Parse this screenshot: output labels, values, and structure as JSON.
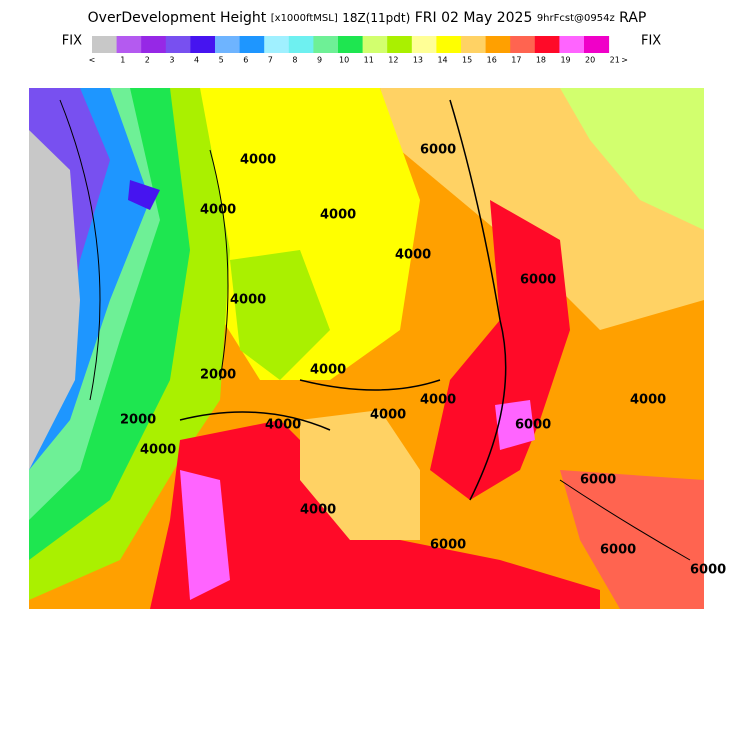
{
  "header": {
    "title": "OverDevelopment Height",
    "units": "[x1000ftMSL]",
    "time": "18Z(11pdt)",
    "date": "FRI 02 May 2025",
    "forecast": "9hrFcst@0954z",
    "model": "RAP"
  },
  "colorbar": {
    "left_label": "FIX",
    "right_label": "FIX",
    "colors": [
      "#c8c8c8",
      "#b45af0",
      "#9628e6",
      "#7850f0",
      "#4614f0",
      "#6eb4ff",
      "#1e96ff",
      "#a0f0ff",
      "#6ef0f0",
      "#6ef096",
      "#1ee650",
      "#d2ff6e",
      "#aaf000",
      "#ffff96",
      "#ffff00",
      "#ffd264",
      "#ffa000",
      "#ff6450",
      "#ff0a28",
      "#ff64ff",
      "#f000c8"
    ],
    "labels": [
      "<",
      "1",
      "2",
      "3",
      "4",
      "5",
      "6",
      "7",
      "8",
      "9",
      "10",
      "11",
      "12",
      "13",
      "14",
      "15",
      "16",
      "17",
      "18",
      "19",
      "20",
      "21",
      ">"
    ]
  },
  "map": {
    "contour_labels": [
      "4000",
      "4000",
      "6000",
      "4000",
      "2000",
      "4000",
      "2000",
      "4000",
      "4000",
      "4000",
      "4000",
      "6000",
      "4000",
      "6000",
      "6000",
      "4000",
      "6000",
      "6000",
      "4000",
      "6000",
      "4000"
    ]
  }
}
